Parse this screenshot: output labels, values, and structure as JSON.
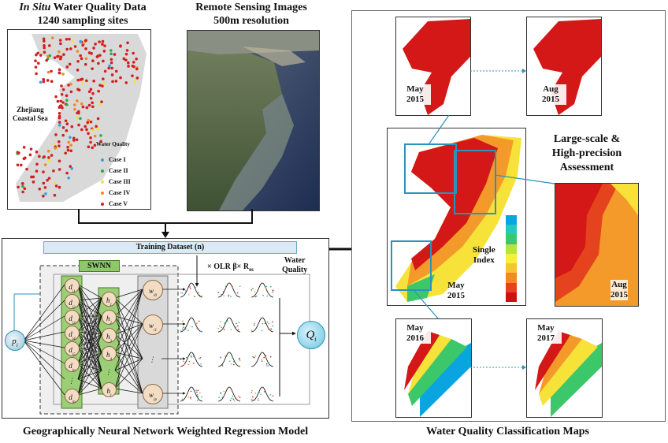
{
  "insitu": {
    "title_italic": "In Situ",
    "title_rest": " Water Quality Data",
    "subtitle": "1240 sampling sites",
    "region_label_1": "Zhejiang",
    "region_label_2": "Coastal Sea",
    "legend_title": "Water Quality",
    "legend": [
      {
        "label": "Case I",
        "color": "#3aa0e0"
      },
      {
        "label": "Case II",
        "color": "#2ea84a"
      },
      {
        "label": "Case III",
        "color": "#f2e33a"
      },
      {
        "label": "Case IV",
        "color": "#f08a1e"
      },
      {
        "label": "Case V",
        "color": "#d21f1f"
      }
    ]
  },
  "remote": {
    "title": "Remote Sensing Images",
    "subtitle": "500m resolution"
  },
  "model": {
    "training_label": "Training Dataset (n)",
    "swnn_label": "SWNN",
    "olr_label": "× OLR β× R",
    "olr_sub": "es",
    "water_quality_1": "Water",
    "water_quality_2": "Quality",
    "input_node": "p",
    "input_sub": "i",
    "output_node": "Q",
    "output_sub": "i",
    "d_nodes": [
      "d",
      "d",
      "d",
      "d",
      "d",
      "d",
      "⋮",
      "d"
    ],
    "d_subs": [
      "i1",
      "i2",
      "i3",
      "i4",
      "i5",
      "in",
      "",
      "in"
    ],
    "h_nodes": [
      "h",
      "h",
      "h",
      "h",
      "⋮",
      "h"
    ],
    "h_subs": [
      "1",
      "2",
      "3",
      "4",
      "",
      "l"
    ],
    "w_nodes": [
      "w",
      "w",
      "⋮",
      "w"
    ],
    "w_subs": [
      "i0",
      "i1",
      "",
      "ip"
    ],
    "caption": "Geographically Neural Network Weighted Regression Model"
  },
  "classification": {
    "caption": "Water Quality Classification Maps",
    "large_scale_1": "Large-scale &",
    "large_scale_2": "High-precision",
    "large_scale_3": "Assessment",
    "single_index_1": "Single",
    "single_index_2": "Index",
    "maps": {
      "top_left": {
        "month": "May",
        "year": "2015"
      },
      "top_right": {
        "month": "Aug",
        "year": "2015"
      },
      "center": {
        "month": "May",
        "year": "2015"
      },
      "zoom": {
        "month": "Aug",
        "year": "2015"
      },
      "bottom_left": {
        "month": "May",
        "year": "2016"
      },
      "bottom_right": {
        "month": "May",
        "year": "2017"
      }
    },
    "colorbar": [
      "#0aa5e0",
      "#27c7c0",
      "#3cc86a",
      "#b8e23c",
      "#f7ef3a",
      "#f7c531",
      "#f18a24",
      "#e4431d",
      "#cc1212"
    ]
  },
  "colors": {
    "accent_blue": "#2a94b8",
    "panel_border": "#333333",
    "swnn_green": "#8fc86a",
    "node_fill": "#f2dcc4"
  }
}
